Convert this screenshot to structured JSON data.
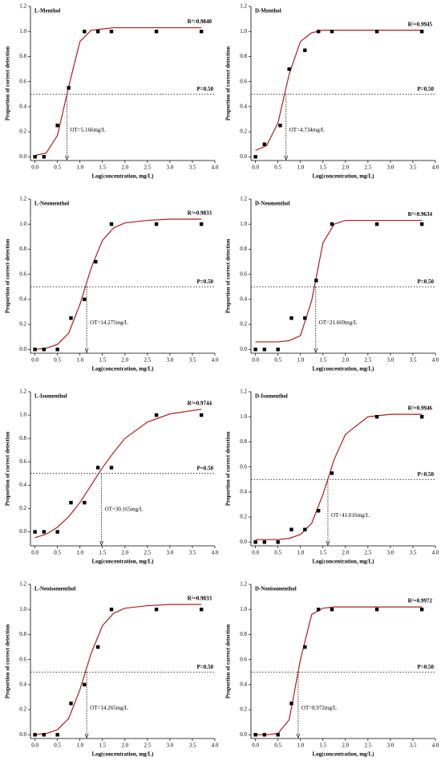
{
  "chart_data": [
    {
      "type": "scatter",
      "title": "L-Menthol",
      "r2": "R²=0.9840",
      "p_label": "P=0.50",
      "ot_label": "OT=5.166mg/L",
      "threshold": 0.5,
      "ot_x": 0.71,
      "xlabel": "Log(concentration,  mg/L)",
      "ylabel": "Proportion of correct detection",
      "xlim": [
        -0.1,
        4
      ],
      "ylim": [
        -0.03,
        1.2
      ],
      "xticks": [
        {
          "value": 0,
          "label": "0.0"
        },
        0.5,
        {
          "value": 1,
          "label": "1.0"
        },
        1.5,
        {
          "value": 2,
          "label": "2.0"
        },
        2.5,
        {
          "value": 3,
          "label": "3.0"
        },
        3.5,
        {
          "value": 4,
          "label": "4.0"
        }
      ],
      "yticks": [
        {
          "value": 0,
          "label": "0.0"
        },
        0.2,
        0.4,
        0.6,
        0.8,
        {
          "value": 1,
          "label": "1.0"
        },
        1.2
      ],
      "x": [
        0,
        0.2,
        0.5,
        0.75,
        1.1,
        1.4,
        1.7,
        2.7,
        3.7
      ],
      "values": [
        0,
        0,
        0.25,
        0.55,
        1,
        1,
        1,
        1,
        1
      ],
      "color": "#000000",
      "fit": {
        "color": "#b01e1e",
        "x": [
          0,
          0.25,
          0.5,
          0.75,
          1,
          1.25,
          1.5,
          1.75,
          2,
          2.5,
          3,
          3.7
        ],
        "values": [
          0.01,
          0.03,
          0.17,
          0.56,
          0.92,
          1.01,
          1.02,
          1.03,
          1.03,
          1.03,
          1.03,
          1.03
        ]
      }
    },
    {
      "type": "scatter",
      "title": "D-Menthol",
      "r2": "R²=0.9945",
      "p_label": "P=0.50",
      "ot_label": "OT=4.734mg/L",
      "threshold": 0.5,
      "ot_x": 0.68,
      "xlabel": "Log(concentration,  mg/L)",
      "ylabel": "Proportion of correct detection",
      "xlim": [
        -0.1,
        4
      ],
      "ylim": [
        -0.03,
        1.2
      ],
      "xticks": [
        {
          "value": 0,
          "label": "0.0"
        },
        0.5,
        {
          "value": 1,
          "label": "1.0"
        },
        1.5,
        {
          "value": 2,
          "label": "2.0"
        },
        2.5,
        {
          "value": 3,
          "label": "3.0"
        },
        3.5,
        {
          "value": 4,
          "label": "4.0"
        }
      ],
      "yticks": [
        {
          "value": 0,
          "label": "0.0"
        },
        0.2,
        0.4,
        0.6,
        0.8,
        {
          "value": 1,
          "label": "1.0"
        },
        1.2
      ],
      "x": [
        0,
        0.2,
        0.55,
        0.75,
        1.1,
        1.4,
        1.7,
        2.7,
        3.7
      ],
      "values": [
        0,
        0.1,
        0.25,
        0.7,
        0.85,
        1,
        1,
        1,
        1
      ],
      "color": "#000000",
      "fit": {
        "color": "#b01e1e",
        "x": [
          0,
          0.25,
          0.5,
          0.75,
          1,
          1.25,
          1.5,
          1.75,
          2,
          2.5,
          3,
          3.7
        ],
        "values": [
          0.05,
          0.09,
          0.27,
          0.66,
          0.92,
          0.99,
          1.01,
          1.01,
          1.01,
          1.01,
          1.01,
          1.01
        ]
      }
    },
    {
      "type": "scatter",
      "title": "L-Neomenthol",
      "r2": "R²=0.9833",
      "p_label": "P=0.50",
      "ot_label": "OT=14.275mg/L",
      "threshold": 0.5,
      "ot_x": 1.15,
      "xlabel": "Log(concentration,  mg/L)",
      "ylabel": "Proportion of correct detection",
      "xlim": [
        -0.1,
        4
      ],
      "ylim": [
        -0.03,
        1.2
      ],
      "xticks": [
        {
          "value": 0,
          "label": "0.0"
        },
        0.5,
        {
          "value": 1,
          "label": "1.0"
        },
        1.5,
        {
          "value": 2,
          "label": "2.0"
        },
        2.5,
        {
          "value": 3,
          "label": "3.0"
        },
        3.5,
        {
          "value": 4,
          "label": "4.0"
        }
      ],
      "yticks": [
        {
          "value": 0,
          "label": "0.0"
        },
        0.2,
        0.4,
        0.6,
        0.8,
        {
          "value": 1,
          "label": "1.0"
        },
        1.2
      ],
      "x": [
        0,
        0.2,
        0.5,
        0.8,
        1.1,
        1.35,
        1.7,
        2.7,
        3.7
      ],
      "values": [
        0,
        0,
        0,
        0.25,
        0.4,
        0.7,
        1,
        1,
        1
      ],
      "color": "#000000",
      "fit": {
        "color": "#b01e1e",
        "x": [
          0,
          0.25,
          0.5,
          0.75,
          1,
          1.25,
          1.5,
          1.75,
          2,
          2.5,
          3,
          3.7
        ],
        "values": [
          0,
          0.01,
          0.04,
          0.13,
          0.36,
          0.65,
          0.87,
          0.97,
          1.01,
          1.03,
          1.04,
          1.04
        ]
      }
    },
    {
      "type": "scatter",
      "title": "D-Neomenthol",
      "r2": "R²=0.9634",
      "p_label": "P=0.50",
      "ot_label": "OT=21.669mg/L",
      "threshold": 0.5,
      "ot_x": 1.34,
      "xlabel": "Log(concentration,  mg/L)",
      "ylabel": "Proportion of correct detection",
      "xlim": [
        -0.1,
        4
      ],
      "ylim": [
        -0.03,
        1.2
      ],
      "xticks": [
        {
          "value": 0,
          "label": "0.0"
        },
        0.5,
        {
          "value": 1,
          "label": "1.0"
        },
        1.5,
        {
          "value": 2,
          "label": "2.0"
        },
        2.5,
        {
          "value": 3,
          "label": "3.0"
        },
        3.5,
        {
          "value": 4,
          "label": "4.0"
        }
      ],
      "yticks": [
        {
          "value": 0,
          "label": "0.0"
        },
        0.2,
        0.4,
        0.6,
        0.8,
        {
          "value": 1,
          "label": "1.0"
        },
        1.2
      ],
      "x": [
        0,
        0.2,
        0.5,
        0.8,
        1.1,
        1.35,
        1.7,
        2.7,
        3.7
      ],
      "values": [
        0,
        0,
        0,
        0.25,
        0.25,
        0.55,
        1,
        1,
        1
      ],
      "color": "#000000",
      "fit": {
        "color": "#b01e1e",
        "x": [
          0,
          0.25,
          0.5,
          0.75,
          1,
          1.25,
          1.5,
          1.75,
          2,
          2.5,
          3,
          3.7
        ],
        "values": [
          0.06,
          0.06,
          0.06,
          0.07,
          0.11,
          0.39,
          0.85,
          1,
          1.03,
          1.03,
          1.03,
          1.03
        ]
      }
    },
    {
      "type": "scatter",
      "title": "L-Isomenthol",
      "r2": "R²=0.9744",
      "p_label": "P=0.50",
      "ot_label": "OT=30.165mg/L",
      "threshold": 0.5,
      "ot_x": 1.48,
      "xlabel": "Log(concentration,  mg/L)",
      "ylabel": "Proportion of correct detection",
      "xlim": [
        -0.1,
        4
      ],
      "ylim": [
        -0.12,
        1.2
      ],
      "xticks": [
        {
          "value": 0,
          "label": "0.0"
        },
        0.5,
        {
          "value": 1,
          "label": "1.0"
        },
        1.5,
        {
          "value": 2,
          "label": "2.0"
        },
        2.5,
        {
          "value": 3,
          "label": "3.0"
        },
        3.5,
        {
          "value": 4,
          "label": "4.0"
        }
      ],
      "yticks": [
        {
          "value": 0,
          "label": "0.0"
        },
        0.2,
        0.4,
        0.6,
        0.8,
        {
          "value": 1,
          "label": "1.0"
        },
        1.2
      ],
      "x": [
        0,
        0.2,
        0.5,
        0.8,
        1.1,
        1.4,
        1.7,
        2.7,
        3.7
      ],
      "values": [
        0,
        0,
        0,
        0.25,
        0.25,
        0.55,
        0.55,
        1,
        1
      ],
      "color": "#000000",
      "fit": {
        "color": "#b01e1e",
        "x": [
          0,
          0.25,
          0.5,
          0.75,
          1,
          1.25,
          1.5,
          1.75,
          2,
          2.5,
          3,
          3.7
        ],
        "values": [
          -0.05,
          -0.02,
          0.04,
          0.13,
          0.25,
          0.4,
          0.55,
          0.68,
          0.8,
          0.94,
          1.01,
          1.05
        ]
      }
    },
    {
      "type": "scatter",
      "title": "D-Isomenthol",
      "r2": "R²=0.9946",
      "p_label": "P=0.50",
      "ot_label": "OT=41.016mg/L",
      "threshold": 0.5,
      "ot_x": 1.61,
      "xlabel": "Log(concentration,  mg/L)",
      "ylabel": "Proportion of correct detection",
      "xlim": [
        -0.1,
        4
      ],
      "ylim": [
        -0.03,
        1.2
      ],
      "xticks": [
        {
          "value": 0,
          "label": "0.0"
        },
        0.5,
        {
          "value": 1,
          "label": "1.0"
        },
        1.5,
        {
          "value": 2,
          "label": "2.0"
        },
        2.5,
        {
          "value": 3,
          "label": "3.0"
        },
        3.5,
        {
          "value": 4,
          "label": "4.0"
        }
      ],
      "yticks": [
        {
          "value": 0,
          "label": "0.0"
        },
        0.2,
        0.4,
        0.6,
        0.8,
        {
          "value": 1,
          "label": "1.0"
        },
        1.2
      ],
      "x": [
        0,
        0.2,
        0.5,
        0.8,
        1.1,
        1.4,
        1.7,
        2.7,
        3.7
      ],
      "values": [
        0,
        0,
        0,
        0.1,
        0.1,
        0.25,
        0.55,
        1,
        1
      ],
      "color": "#000000",
      "fit": {
        "color": "#b01e1e",
        "x": [
          0,
          0.25,
          0.5,
          0.75,
          1,
          1.25,
          1.5,
          1.75,
          2,
          2.5,
          3,
          3.7
        ],
        "values": [
          0.02,
          0.02,
          0.02,
          0.03,
          0.06,
          0.15,
          0.38,
          0.66,
          0.86,
          1,
          1.02,
          1.02
        ]
      }
    },
    {
      "type": "scatter",
      "title": "L-Neoisomenthol",
      "r2": "R²=0.9833",
      "p_label": "P=0.50",
      "ot_label": "OT=14.265mg/L",
      "threshold": 0.5,
      "ot_x": 1.15,
      "xlabel": "Log(concentration,  mg/L)",
      "ylabel": "Proportion of correct detection",
      "xlim": [
        -0.1,
        4
      ],
      "ylim": [
        -0.03,
        1.2
      ],
      "xticks": [
        {
          "value": 0,
          "label": "0.0"
        },
        0.5,
        {
          "value": 1,
          "label": "1.0"
        },
        1.5,
        {
          "value": 2,
          "label": "2.0"
        },
        2.5,
        {
          "value": 3,
          "label": "3.0"
        },
        3.5,
        {
          "value": 4,
          "label": "4.0"
        }
      ],
      "yticks": [
        {
          "value": 0,
          "label": "0.0"
        },
        0.2,
        0.4,
        0.6,
        0.8,
        {
          "value": 1,
          "label": "1.0"
        },
        1.2
      ],
      "x": [
        0,
        0.2,
        0.5,
        0.8,
        1.1,
        1.4,
        1.7,
        2.7,
        3.7
      ],
      "values": [
        0,
        0,
        0,
        0.25,
        0.4,
        0.7,
        1,
        1,
        1
      ],
      "color": "#000000",
      "fit": {
        "color": "#b01e1e",
        "x": [
          0,
          0.25,
          0.5,
          0.75,
          1,
          1.25,
          1.5,
          1.75,
          2,
          2.5,
          3,
          3.7
        ],
        "values": [
          0,
          0.01,
          0.04,
          0.13,
          0.36,
          0.65,
          0.87,
          0.97,
          1.01,
          1.03,
          1.04,
          1.04
        ]
      }
    },
    {
      "type": "scatter",
      "title": "D-Neoisomenthol",
      "r2": "R²=0.9972",
      "p_label": "P=0.50",
      "ot_label": "OT=8.972mg/L",
      "threshold": 0.5,
      "ot_x": 0.95,
      "xlabel": "Log(concentration,  mg/L)",
      "ylabel": "Proportion of correct detection",
      "xlim": [
        -0.1,
        4
      ],
      "ylim": [
        -0.03,
        1.2
      ],
      "xticks": [
        {
          "value": 0,
          "label": "0.0"
        },
        0.5,
        {
          "value": 1,
          "label": "1.0"
        },
        1.5,
        {
          "value": 2,
          "label": "2.0"
        },
        2.5,
        {
          "value": 3,
          "label": "3.0"
        },
        3.5,
        {
          "value": 4,
          "label": "4.0"
        }
      ],
      "yticks": [
        {
          "value": 0,
          "label": "0.0"
        },
        0.2,
        0.4,
        0.6,
        0.8,
        {
          "value": 1,
          "label": "1.0"
        },
        1.2
      ],
      "x": [
        0,
        0.2,
        0.5,
        0.8,
        1.1,
        1.4,
        1.7,
        2.7,
        3.7
      ],
      "values": [
        0,
        0,
        0,
        0.25,
        0.7,
        1,
        1,
        1,
        1
      ],
      "color": "#000000",
      "fit": {
        "color": "#b01e1e",
        "x": [
          0,
          0.25,
          0.5,
          0.75,
          1,
          1.25,
          1.5,
          1.75,
          2,
          2.5,
          3,
          3.7
        ],
        "values": [
          0,
          0,
          0.01,
          0.12,
          0.6,
          0.96,
          1.01,
          1.02,
          1.02,
          1.02,
          1.02,
          1.02
        ]
      }
    }
  ]
}
